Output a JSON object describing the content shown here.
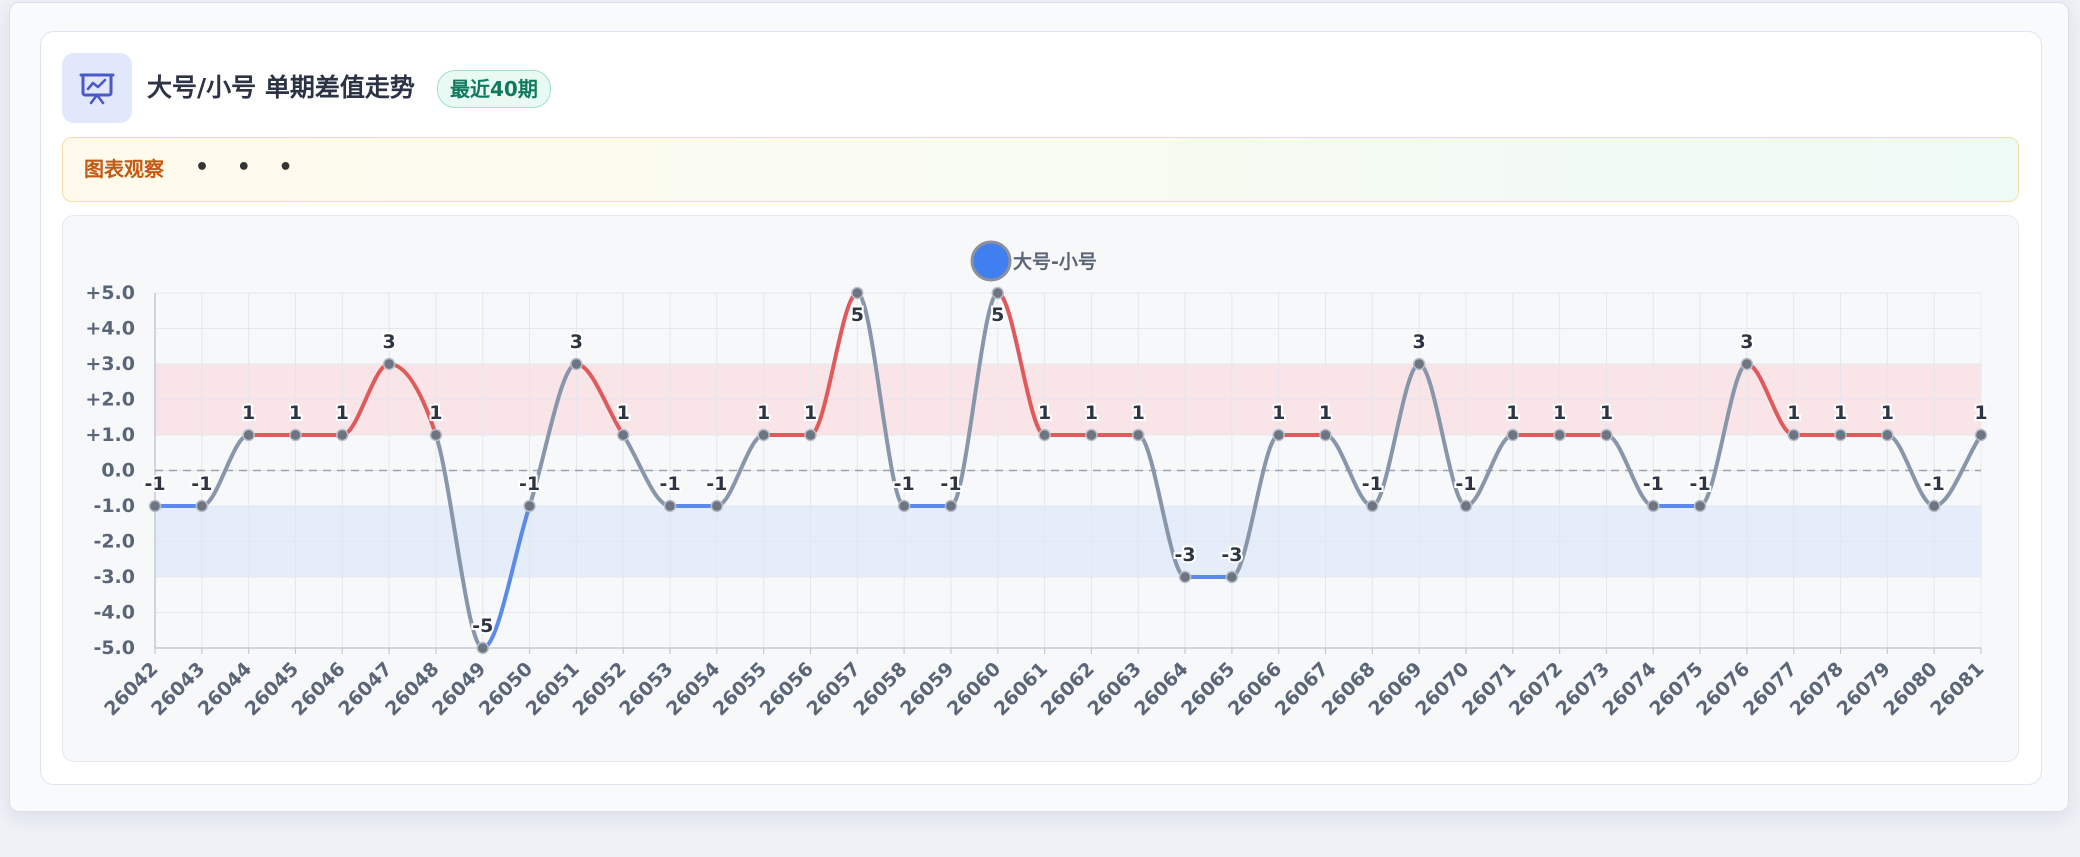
{
  "header": {
    "title": "大号/小号 单期差值走势",
    "badge": "最近40期",
    "icon": "presentation-chart-icon"
  },
  "observation": {
    "label": "图表观察",
    "dots": "• • •"
  },
  "colors": {
    "positive_line": "#e05a5c",
    "negative_line": "#5b8ae8",
    "neutral_line": "#8896aa",
    "positive_band": "#f9dfe2",
    "negative_band": "#dde7f9",
    "legend_dot": "#3f7ff0",
    "point": "#6d7482"
  },
  "chart_data": {
    "type": "line",
    "title": "",
    "series": [
      {
        "name": "大号-小号",
        "values": [
          -1,
          -1,
          1,
          1,
          1,
          3,
          1,
          -5,
          -1,
          3,
          1,
          -1,
          -1,
          1,
          1,
          5,
          -1,
          -1,
          5,
          1,
          1,
          1,
          -3,
          -3,
          1,
          1,
          -1,
          3,
          -1,
          1,
          1,
          1,
          -1,
          -1,
          3,
          1,
          1,
          1,
          -1,
          1
        ]
      }
    ],
    "x": [
      "26042",
      "26043",
      "26044",
      "26045",
      "26046",
      "26047",
      "26048",
      "26049",
      "26050",
      "26051",
      "26052",
      "26053",
      "26054",
      "26055",
      "26056",
      "26057",
      "26058",
      "26059",
      "26060",
      "26061",
      "26062",
      "26063",
      "26064",
      "26065",
      "26066",
      "26067",
      "26068",
      "26069",
      "26070",
      "26071",
      "26072",
      "26073",
      "26074",
      "26075",
      "26076",
      "26077",
      "26078",
      "26079",
      "26080",
      "26081"
    ],
    "ylim": [
      -5,
      5
    ],
    "yticks": [
      "+5.0",
      "+4.0",
      "+3.0",
      "+2.0",
      "+1.0",
      "0.0",
      "-1.0",
      "-2.0",
      "-3.0",
      "-4.0",
      "-5.0"
    ],
    "bands": [
      {
        "from": 1,
        "to": 3,
        "kind": "positive"
      },
      {
        "from": -3,
        "to": -1,
        "kind": "negative"
      }
    ],
    "zero_line": "dashed",
    "grid": true,
    "legend": "top-center",
    "xlabel": "",
    "ylabel": ""
  }
}
